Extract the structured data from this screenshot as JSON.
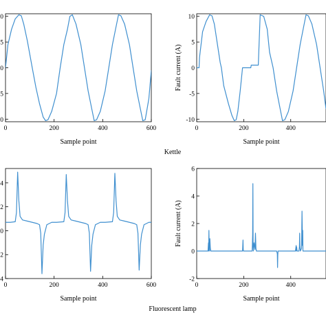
{
  "captions": {
    "top": "Kettle",
    "bottom": "Fluorescent lamp"
  },
  "chart_data": [
    {
      "type": "line",
      "panel": "kettle-normal",
      "xlabel": "Sample point",
      "ylabel": "",
      "xlim": [
        0,
        600
      ],
      "ylim": [
        -10.5,
        10.5
      ],
      "xticks": [
        "0",
        "200",
        "400",
        "600"
      ],
      "yticks": [
        "0",
        "5",
        "0",
        "5",
        "0"
      ],
      "grid": false,
      "series": [
        {
          "color": "#3f8fcf",
          "x": [
            0,
            10,
            25,
            40,
            55,
            65,
            75,
            90,
            110,
            125,
            140,
            155,
            165,
            175,
            190,
            210,
            225,
            240,
            255,
            265,
            275,
            290,
            310,
            325,
            340,
            355,
            365,
            375,
            390,
            410,
            425,
            440,
            455,
            465,
            475,
            490,
            510,
            525,
            540,
            555,
            565,
            575,
            590,
            600
          ],
          "y": [
            0,
            4.5,
            7.5,
            9.5,
            10.3,
            10.1,
            8.5,
            5.2,
            0,
            -3.8,
            -7.0,
            -9.6,
            -10.3,
            -10.1,
            -8.5,
            -5.0,
            0,
            4.5,
            7.5,
            10.0,
            10.3,
            8.5,
            4.5,
            0,
            -4.5,
            -8.0,
            -10.3,
            -10.1,
            -8.5,
            -4.5,
            0,
            4.5,
            8.0,
            10.3,
            10.1,
            8.5,
            4.5,
            0,
            -4.5,
            -8.0,
            -10.3,
            -10.1,
            -6.0,
            -0.5
          ]
        }
      ]
    },
    {
      "type": "line",
      "panel": "kettle-fault",
      "xlabel": "Sample point",
      "ylabel": "Fault current (A)",
      "xlim": [
        0,
        550
      ],
      "ylim": [
        -10.5,
        10.5
      ],
      "xticks": [
        "0",
        "200",
        "400"
      ],
      "yticks": [
        "10",
        "5",
        "0",
        "-5",
        "-10"
      ],
      "grid": false,
      "series": [
        {
          "color": "#3f8fcf",
          "x": [
            0,
            10,
            12,
            25,
            40,
            55,
            65,
            75,
            90,
            100,
            105,
            115,
            135,
            150,
            160,
            168,
            175,
            185,
            195,
            200,
            210,
            220,
            230,
            232,
            240,
            262,
            270,
            285,
            300,
            310,
            325,
            340,
            355,
            365,
            375,
            390,
            410,
            425,
            440,
            455,
            465,
            475,
            490,
            510,
            525,
            540,
            550
          ],
          "y": [
            0,
            0,
            2.0,
            7.0,
            9.0,
            10.3,
            10.1,
            8.5,
            4.0,
            1.0,
            0,
            -3.5,
            -7.0,
            -9.3,
            -10.3,
            -10.1,
            -8.5,
            -4.5,
            0,
            0,
            0,
            0,
            0,
            0.5,
            0.5,
            0.5,
            10.3,
            10.0,
            7.5,
            3.0,
            0,
            -4.5,
            -8.0,
            -10.3,
            -10.1,
            -8.5,
            -4.5,
            0,
            4.5,
            8.0,
            10.3,
            10.1,
            8.5,
            4.5,
            0,
            -4.5,
            -8.0
          ]
        }
      ]
    },
    {
      "type": "line",
      "panel": "lamp-normal",
      "xlabel": "Sample point",
      "ylabel": "",
      "xlim": [
        0,
        600
      ],
      "ylim": [
        -4,
        5.2
      ],
      "xticks": [
        "0",
        "200",
        "400",
        "600"
      ],
      "yticks": [
        "4",
        "2",
        "0",
        "2",
        "4"
      ],
      "grid": false,
      "series": [
        {
          "color": "#3f8fcf",
          "x": [
            0,
            20,
            40,
            45,
            50,
            55,
            60,
            70,
            90,
            110,
            130,
            140,
            145,
            150,
            155,
            160,
            170,
            190,
            210,
            240,
            245,
            250,
            255,
            260,
            270,
            290,
            310,
            330,
            340,
            345,
            350,
            355,
            360,
            370,
            390,
            410,
            440,
            445,
            450,
            455,
            460,
            470,
            490,
            510,
            530,
            540,
            545,
            550,
            555,
            560,
            570,
            590,
            600
          ],
          "y": [
            0.7,
            0.7,
            0.75,
            1.5,
            4.9,
            2.5,
            1.2,
            0.9,
            0.8,
            0.7,
            0.6,
            0.5,
            -0.2,
            -3.6,
            -1.2,
            -0.3,
            0.5,
            0.7,
            0.7,
            0.75,
            1.5,
            4.7,
            2.5,
            1.2,
            0.9,
            0.8,
            0.7,
            0.6,
            0.5,
            -0.2,
            -3.4,
            -1.2,
            -0.3,
            0.5,
            0.7,
            0.7,
            0.75,
            1.5,
            4.8,
            2.5,
            1.2,
            0.9,
            0.8,
            0.7,
            0.6,
            0.5,
            -0.2,
            -3.3,
            -1.2,
            -0.3,
            0.5,
            0.7,
            0.7
          ]
        }
      ]
    },
    {
      "type": "line",
      "panel": "lamp-fault",
      "xlabel": "Sample point",
      "ylabel": "Fault current (A)",
      "xlim": [
        0,
        550
      ],
      "ylim": [
        -2,
        6
      ],
      "xticks": [
        "0",
        "200",
        "400"
      ],
      "yticks": [
        "6",
        "4",
        "2",
        "0",
        "-2"
      ],
      "grid": false,
      "series": [
        {
          "color": "#3f8fcf",
          "x": [
            0,
            48,
            50,
            51,
            52,
            53,
            54,
            55,
            56,
            58,
            60,
            195,
            197,
            198,
            199,
            201,
            236,
            238,
            239,
            240,
            241,
            242,
            244,
            248,
            250,
            252,
            254,
            340,
            343,
            344,
            345,
            346,
            348,
            420,
            423,
            424,
            425,
            427,
            435,
            437,
            438,
            439,
            441,
            446,
            448,
            450,
            451,
            452,
            455,
            550
          ],
          "y": [
            0,
            0,
            0.6,
            0,
            1.5,
            0.3,
            0.8,
            0,
            0.9,
            0.2,
            0,
            0,
            0.8,
            0.1,
            0,
            0,
            0,
            1.2,
            4.9,
            0.3,
            0,
            0.2,
            0.6,
            0.1,
            1.3,
            0.2,
            0,
            0,
            -0.2,
            -1.2,
            -0.3,
            0,
            0,
            0,
            0.4,
            0,
            0.3,
            0,
            0,
            0.3,
            1.3,
            0.4,
            0,
            0.2,
            2.9,
            0.4,
            1.5,
            0,
            0,
            0
          ]
        }
      ]
    }
  ]
}
